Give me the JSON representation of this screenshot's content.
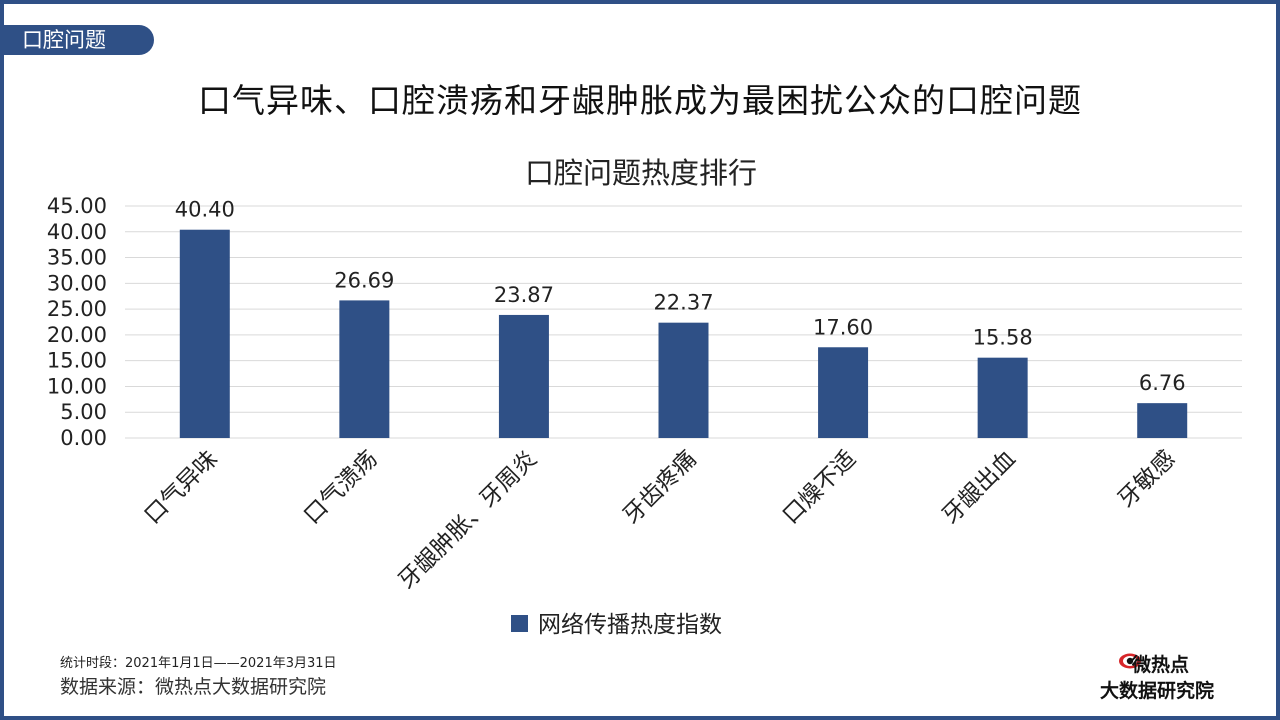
{
  "section_tag": "口腔问题",
  "headline": "口气异味、口腔溃疡和牙龈肿胀成为最困扰公众的口腔问题",
  "chart_data": {
    "type": "bar",
    "title": "口腔问题热度排行",
    "categories": [
      "口气异味",
      "口气溃疡",
      "牙龈肿胀、牙周炎",
      "牙齿疼痛",
      "口燥不适",
      "牙龈出血",
      "牙敏感"
    ],
    "series": [
      {
        "name": "网络传播热度指数",
        "values": [
          40.4,
          26.69,
          23.87,
          22.37,
          17.6,
          15.58,
          6.76
        ]
      }
    ],
    "data_labels": [
      "40.40",
      "26.69",
      "23.87",
      "22.37",
      "17.60",
      "15.58",
      "6.76"
    ],
    "y_ticks": [
      "0.00",
      "5.00",
      "10.00",
      "15.00",
      "20.00",
      "25.00",
      "30.00",
      "35.00",
      "40.00",
      "45.00"
    ],
    "ylim": [
      0,
      45
    ],
    "grid": true,
    "legend_position": "bottom",
    "bar_color": "#2f5086"
  },
  "footer": {
    "period": "统计时段：2021年1月1日——2021年3月31日",
    "source": "数据来源：微热点大数据研究院"
  },
  "logo": {
    "top_text": "微热点",
    "bottom_text": "大数据研究院",
    "icon": "eye-icon"
  },
  "colors": {
    "frame": "#2f5086",
    "logo_accent": "#d7262a"
  }
}
